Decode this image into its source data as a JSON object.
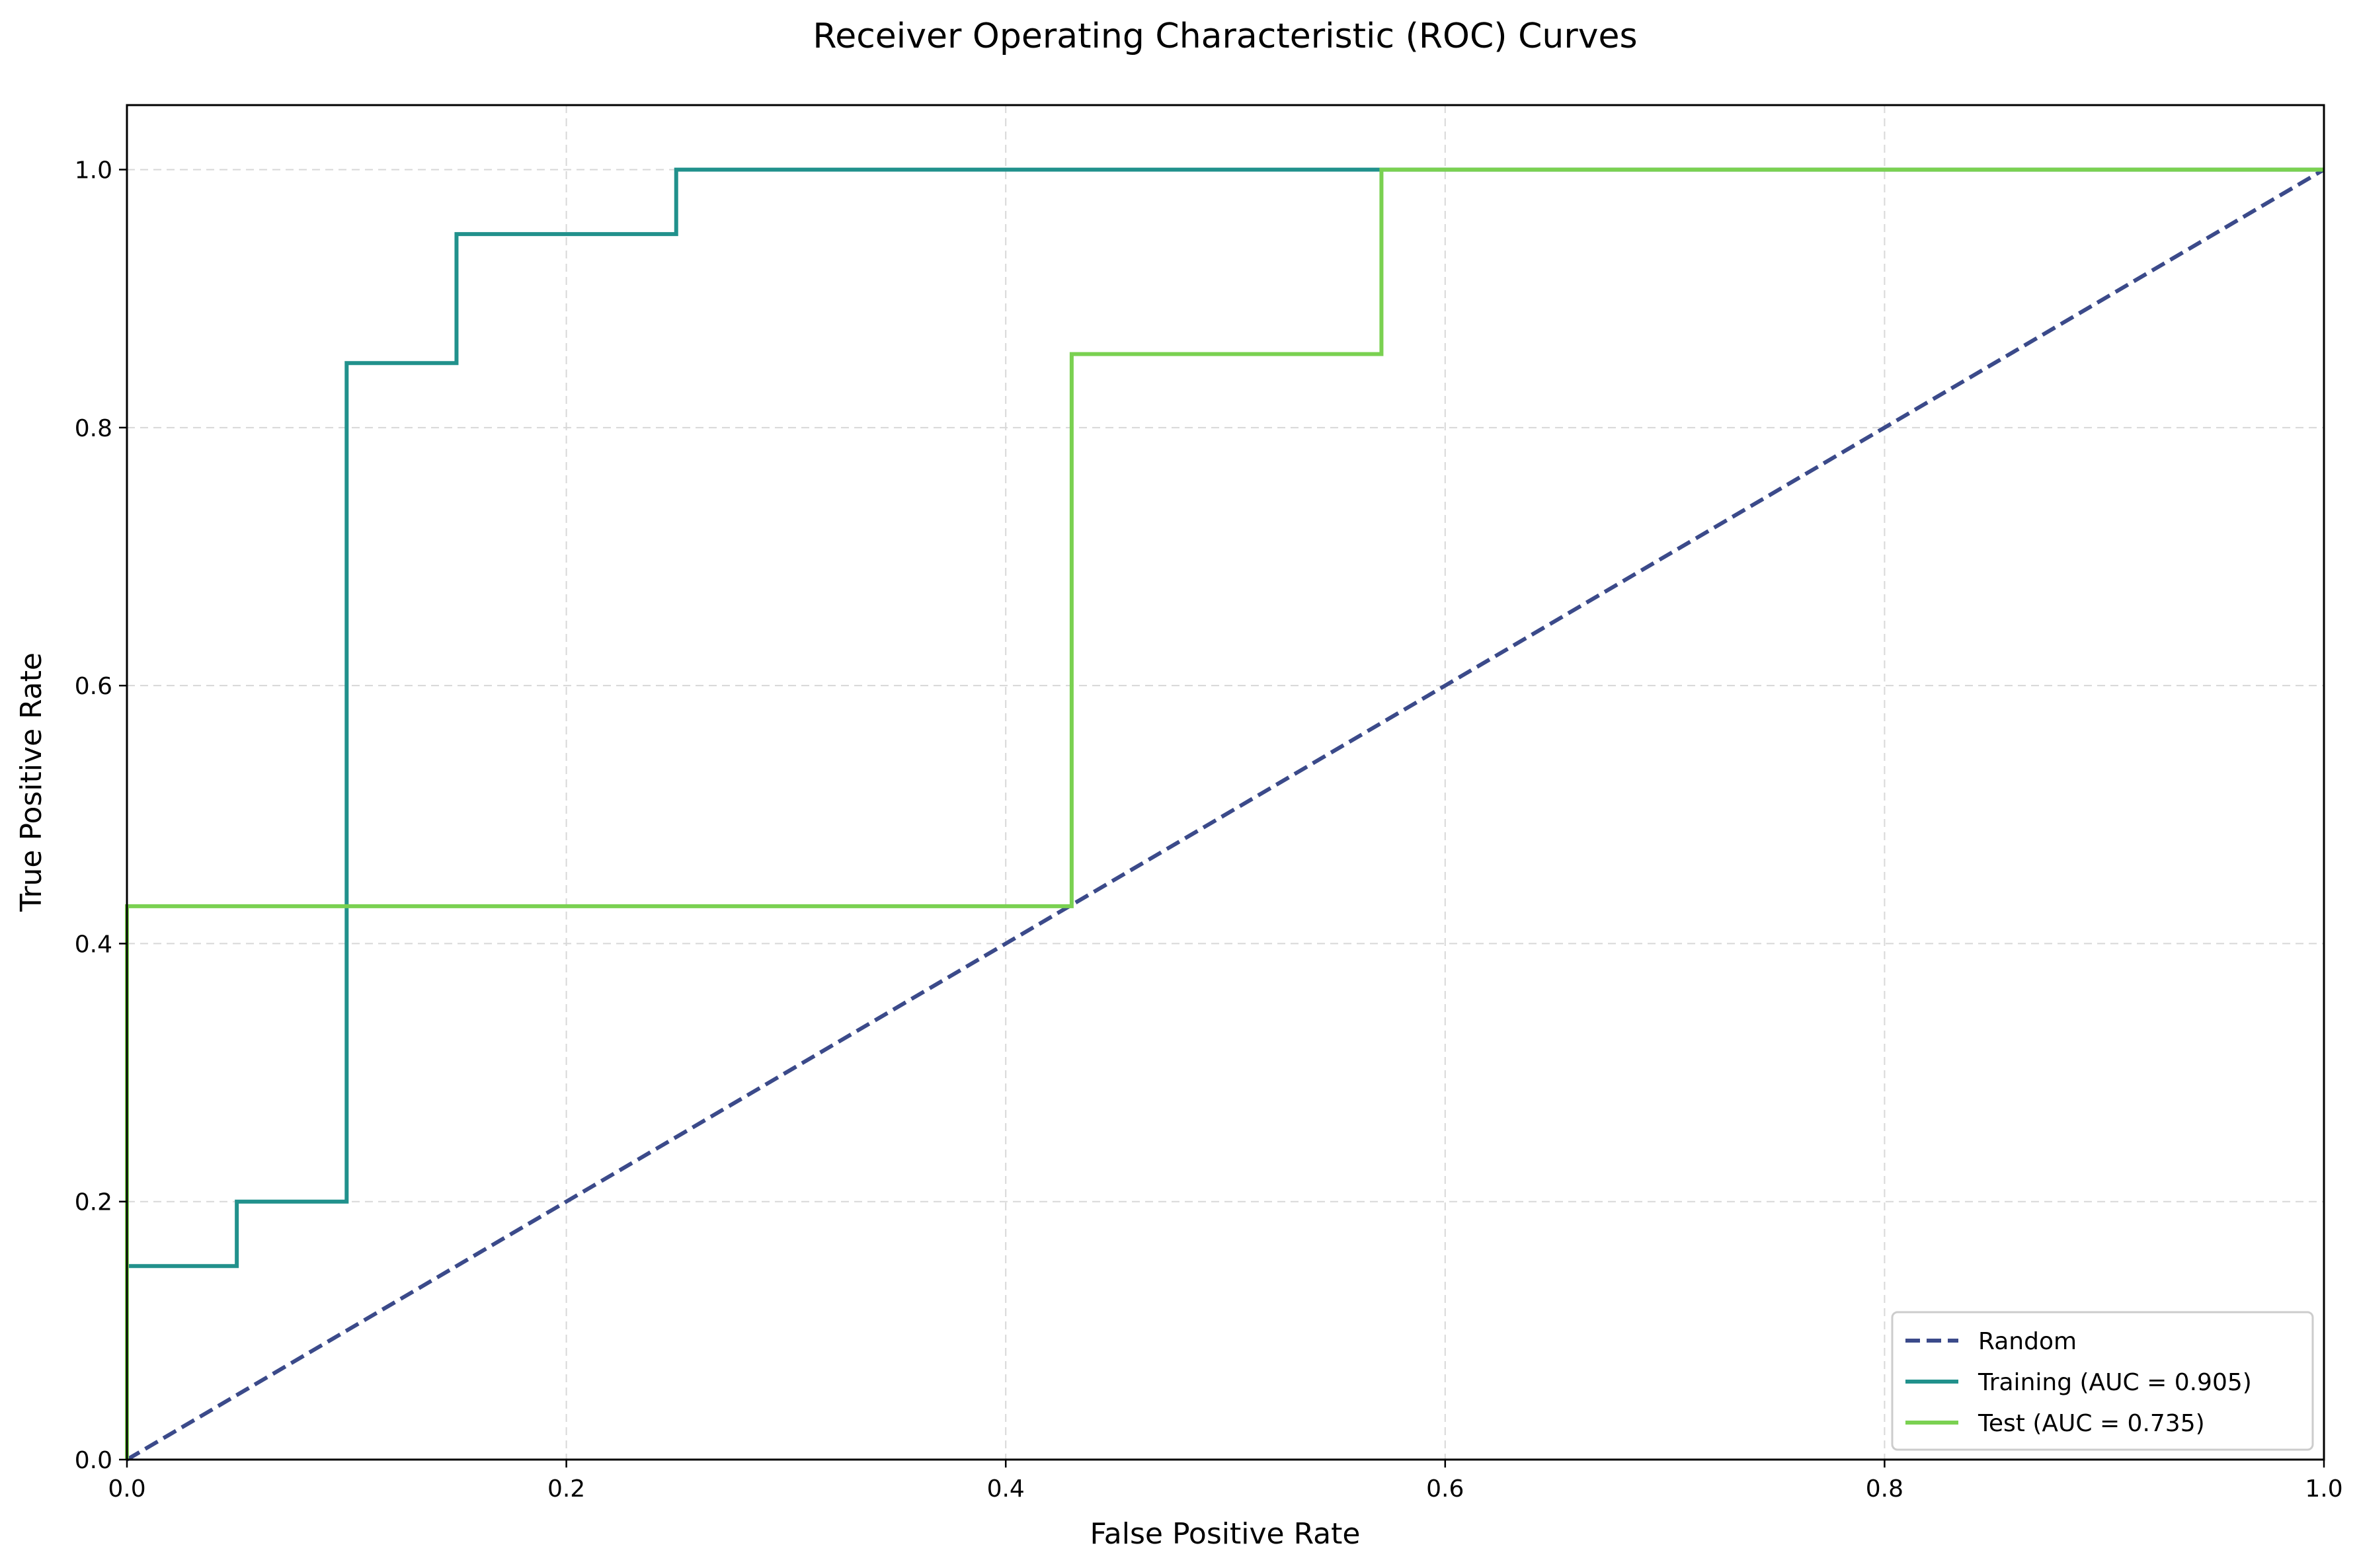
{
  "chart_data": {
    "type": "line",
    "title": "Receiver Operating Characteristic (ROC) Curves",
    "xlabel": "False Positive Rate",
    "ylabel": "True Positive Rate",
    "xlim": [
      0.0,
      1.0
    ],
    "ylim": [
      0.0,
      1.05
    ],
    "xticks": [
      0.0,
      0.2,
      0.4,
      0.6,
      0.8,
      1.0
    ],
    "yticks": [
      0.0,
      0.2,
      0.4,
      0.6,
      0.8,
      1.0
    ],
    "xtick_labels": [
      "0.0",
      "0.2",
      "0.4",
      "0.6",
      "0.8",
      "1.0"
    ],
    "ytick_labels": [
      "0.0",
      "0.2",
      "0.4",
      "0.6",
      "0.8",
      "1.0"
    ],
    "grid": true,
    "legend_position": "lower-right",
    "series": [
      {
        "name": "Random",
        "color": "#3b4a8a",
        "style": "dashed",
        "x": [
          0.0,
          1.0
        ],
        "y": [
          0.0,
          1.0
        ]
      },
      {
        "name": "Training (AUC = 0.905)",
        "color": "#21918c",
        "style": "solid",
        "x": [
          0.0,
          0.0,
          0.05,
          0.05,
          0.1,
          0.1,
          0.15,
          0.15,
          0.25,
          0.25,
          0.57,
          1.0
        ],
        "y": [
          0.0,
          0.15,
          0.15,
          0.2,
          0.2,
          0.85,
          0.85,
          0.95,
          0.95,
          1.0,
          1.0,
          1.0
        ]
      },
      {
        "name": "Test (AUC = 0.735)",
        "color": "#7ad151",
        "style": "solid",
        "x": [
          0.0,
          0.0,
          0.43,
          0.43,
          0.571,
          0.571,
          1.0
        ],
        "y": [
          0.0,
          0.429,
          0.429,
          0.857,
          0.857,
          1.0,
          1.0
        ]
      }
    ]
  }
}
